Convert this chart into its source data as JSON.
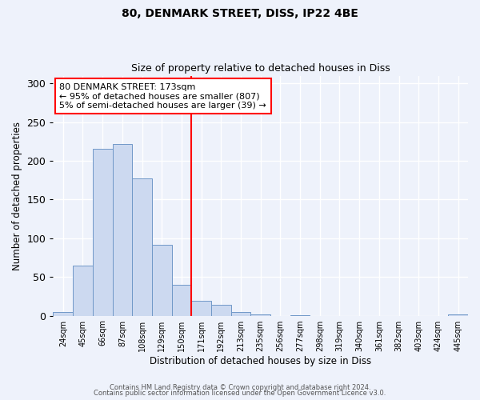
{
  "title": "80, DENMARK STREET, DISS, IP22 4BE",
  "subtitle": "Size of property relative to detached houses in Diss",
  "xlabel": "Distribution of detached houses by size in Diss",
  "ylabel": "Number of detached properties",
  "bin_labels": [
    "24sqm",
    "45sqm",
    "66sqm",
    "87sqm",
    "108sqm",
    "129sqm",
    "150sqm",
    "171sqm",
    "192sqm",
    "213sqm",
    "235sqm",
    "256sqm",
    "277sqm",
    "298sqm",
    "319sqm",
    "340sqm",
    "361sqm",
    "382sqm",
    "403sqm",
    "424sqm",
    "445sqm"
  ],
  "bar_values": [
    5,
    65,
    215,
    222,
    177,
    92,
    40,
    19,
    14,
    5,
    2,
    0,
    1,
    0,
    0,
    0,
    0,
    0,
    0,
    0,
    2
  ],
  "bar_color": "#ccd9f0",
  "bar_edge_color": "#7098c8",
  "marker_bin_index": 7,
  "vline_color": "red",
  "annotation_title": "80 DENMARK STREET: 173sqm",
  "annotation_line1": "← 95% of detached houses are smaller (807)",
  "annotation_line2": "5% of semi-detached houses are larger (39) →",
  "annotation_box_color": "white",
  "annotation_box_edge": "red",
  "ylim": [
    0,
    310
  ],
  "yticks": [
    0,
    50,
    100,
    150,
    200,
    250,
    300
  ],
  "footnote1": "Contains HM Land Registry data © Crown copyright and database right 2024.",
  "footnote2": "Contains public sector information licensed under the Open Government Licence v3.0.",
  "bg_color": "#eef2fb",
  "grid_color": "#ffffff"
}
